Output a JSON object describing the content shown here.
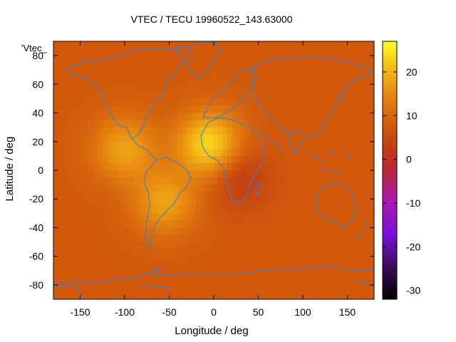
{
  "chart_data": {
    "type": "heatmap",
    "title": "VTEC / TECU 19960522_143.63000",
    "xlabel": "Longitude / deg",
    "ylabel": "Latitude / deg",
    "key_label": "'Vtec_",
    "xlim": [
      -180,
      180
    ],
    "ylim": [
      -90,
      90
    ],
    "x_ticks": [
      -150,
      -100,
      -50,
      0,
      50,
      100,
      150
    ],
    "y_ticks": [
      -80,
      -60,
      -40,
      -20,
      0,
      20,
      40,
      60,
      80
    ],
    "colorbar": {
      "range": [
        -32,
        27
      ],
      "ticks": [
        20,
        10,
        0,
        -10,
        -20,
        -30
      ],
      "palette": "black-purple-red-orange-yellow"
    },
    "grid": false,
    "regions": [
      {
        "name": "background level",
        "vtec": 8
      },
      {
        "name": "West Africa peak",
        "lon": -5,
        "lat": 18,
        "vtec": 24
      },
      {
        "name": "Central America peak",
        "lon": -100,
        "lat": 15,
        "vtec": 18
      },
      {
        "name": "South America peak",
        "lon": -55,
        "lat": -22,
        "vtec": 18
      },
      {
        "name": "Central Africa minimum",
        "lon": 30,
        "lat": -5,
        "vtec": 2
      }
    ],
    "overlay": "coastlines"
  }
}
